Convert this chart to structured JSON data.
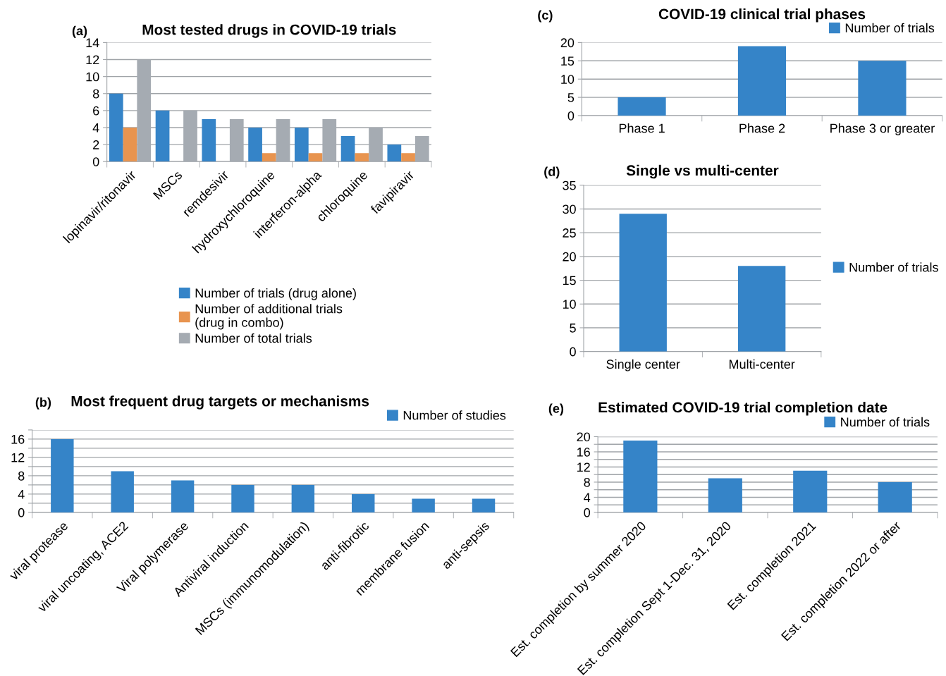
{
  "chart_data": [
    {
      "type": "bar",
      "title": "Most tested drugs in COVID-19 trials",
      "annotations": [
        "(a)"
      ],
      "categories": [
        "lopinavir/ritonavir",
        "MSCs",
        "remdesivir",
        "hydroxychloroquine",
        "interferon-alpha",
        "chloroquine",
        "favipiravir"
      ],
      "series": [
        {
          "name": "Number of trials (drug alone)",
          "color": "#3584c8",
          "values": [
            8,
            6,
            5,
            4,
            4,
            3,
            2
          ]
        },
        {
          "name": "Number of additional trials\n(drug in combo)",
          "color": "#e8944f",
          "values": [
            4,
            0,
            0,
            1,
            1,
            1,
            1
          ]
        },
        {
          "name": "Number of total trials",
          "color": "#a5abb2",
          "values": [
            12,
            6,
            5,
            5,
            5,
            4,
            3
          ]
        }
      ],
      "ylim": [
        0,
        14
      ],
      "yticks": [
        0,
        2,
        4,
        6,
        8,
        10,
        12,
        14
      ],
      "grid": "y",
      "legend": "bottom"
    },
    {
      "type": "bar",
      "title": "Most frequent drug targets or mechanisms",
      "annotations": [
        "(b)"
      ],
      "categories": [
        "viral protease",
        "viral uncoating, ACE2",
        "Viral polymerase",
        "Antiviral induction",
        "MSCs (immunomodulation)",
        "anti-fibrotic",
        "membrane fusion",
        "anti-sepsis"
      ],
      "series": [
        {
          "name": "Number of studies",
          "color": "#3584c8",
          "values": [
            16,
            9,
            7,
            6,
            6,
            4,
            3,
            3
          ]
        }
      ],
      "ylim": [
        0,
        18
      ],
      "yticks": [
        0,
        {
          "value": 2,
          "label": null
        },
        4,
        {
          "value": 6,
          "label": null
        },
        8,
        {
          "value": 10,
          "label": null
        },
        12,
        {
          "value": 14,
          "label": null
        },
        16,
        {
          "value": 18,
          "label": null
        }
      ],
      "grid": "y",
      "legend": "top right"
    },
    {
      "type": "bar",
      "title": "COVID-19 clinical trial phases",
      "annotations": [
        "(c)"
      ],
      "categories": [
        "Phase 1",
        "Phase 2",
        "Phase 3 or greater"
      ],
      "series": [
        {
          "name": "Number of trials",
          "color": "#3584c8",
          "values": [
            5,
            19,
            15
          ]
        }
      ],
      "ylim": [
        0,
        20
      ],
      "yticks": [
        0,
        5,
        10,
        15,
        20
      ],
      "grid": "y",
      "legend": "top right"
    },
    {
      "type": "bar",
      "title": "Single vs multi-center",
      "annotations": [
        "(d)"
      ],
      "categories": [
        "Single center",
        "Multi-center"
      ],
      "series": [
        {
          "name": "Number of trials",
          "color": "#3584c8",
          "values": [
            29,
            18
          ]
        }
      ],
      "ylim": [
        0,
        35
      ],
      "yticks": [
        0,
        5,
        10,
        15,
        20,
        25,
        30,
        35
      ],
      "grid": "y",
      "legend": "right"
    },
    {
      "type": "bar",
      "title": "Estimated COVID-19 trial completion date",
      "annotations": [
        "(e)"
      ],
      "categories": [
        "Est. completion by summer 2020",
        "Est. completion Sept 1-Dec. 31, 2020",
        "Est. completion 2021",
        "Est. completion 2022 or after"
      ],
      "series": [
        {
          "name": "Number of trials",
          "color": "#3584c8",
          "values": [
            19,
            9,
            11,
            8
          ]
        }
      ],
      "ylim": [
        0,
        20
      ],
      "yticks": [
        0,
        {
          "value": 2,
          "label": null
        },
        4,
        {
          "value": 6,
          "label": null
        },
        8,
        {
          "value": 10,
          "label": null
        },
        12,
        {
          "value": 14,
          "label": null
        },
        16,
        {
          "value": 18,
          "label": null
        },
        20
      ],
      "grid": "y",
      "legend": "top right"
    }
  ]
}
